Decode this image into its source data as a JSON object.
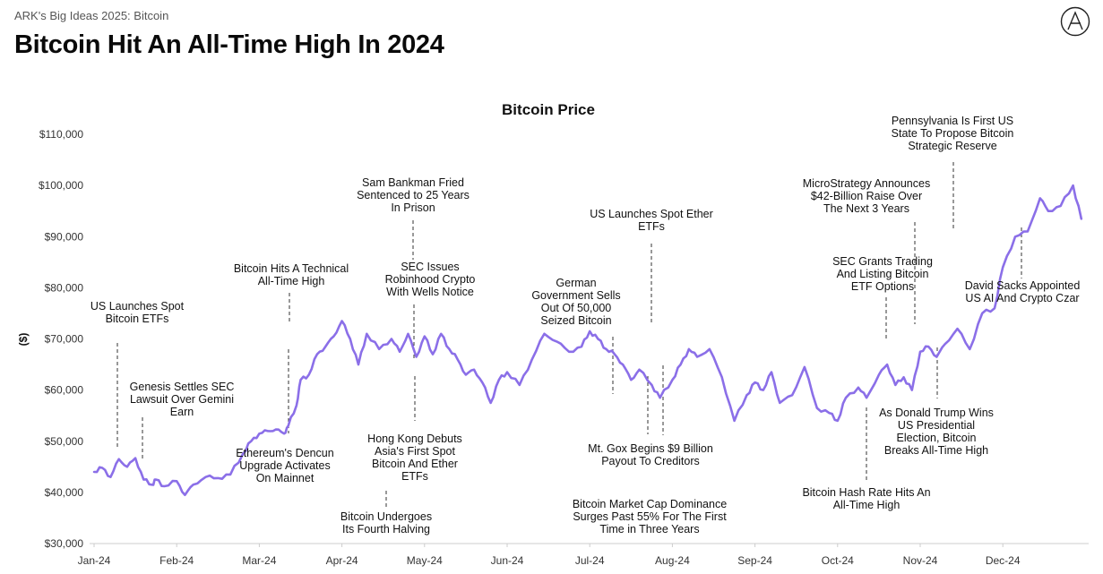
{
  "header": {
    "subtitle": "ARK's Big Ideas 2025: Bitcoin",
    "title": "Bitcoin Hit An All-Time High In 2024",
    "logo_icon": "ark-logo-icon"
  },
  "chart_data": {
    "type": "line",
    "title": "Bitcoin Price",
    "ylabel": "($)",
    "xlabel": "",
    "ylim": [
      30000,
      110000
    ],
    "y_ticks": [
      "$30,000",
      "$40,000",
      "$50,000",
      "$60,000",
      "$70,000",
      "$80,000",
      "$90,000",
      "$100,000",
      "$110,000"
    ],
    "x_ticks": [
      "Jan-24",
      "Feb-24",
      "Mar-24",
      "Apr-24",
      "May-24",
      "Jun-24",
      "Jul-24",
      "Aug-24",
      "Sep-24",
      "Oct-24",
      "Nov-24",
      "Dec-24"
    ],
    "line_color": "#8b6fe8",
    "series": [
      {
        "name": "Bitcoin Price",
        "x": [
          0,
          0.1,
          0.2,
          0.3,
          0.4,
          0.5,
          0.6,
          0.7,
          0.75,
          0.85,
          1,
          1.1,
          1.2,
          1.35,
          1.5,
          1.65,
          1.8,
          1.9,
          2,
          2.1,
          2.2,
          2.3,
          2.35,
          2.45,
          2.5,
          2.6,
          2.7,
          2.8,
          2.9,
          3,
          3.1,
          3.2,
          3.3,
          3.45,
          3.6,
          3.7,
          3.8,
          3.9,
          4,
          4.1,
          4.2,
          4.3,
          4.4,
          4.5,
          4.6,
          4.7,
          4.8,
          4.9,
          5,
          5.15,
          5.3,
          5.45,
          5.6,
          5.75,
          5.9,
          6,
          6.1,
          6.2,
          6.3,
          6.4,
          6.5,
          6.6,
          6.75,
          6.85,
          7,
          7.1,
          7.2,
          7.3,
          7.45,
          7.6,
          7.75,
          7.9,
          8,
          8.1,
          8.2,
          8.3,
          8.45,
          8.6,
          8.75,
          8.9,
          9,
          9.1,
          9.25,
          9.35,
          9.5,
          9.6,
          9.7,
          9.8,
          9.9,
          10,
          10.1,
          10.2,
          10.3,
          10.45,
          10.6,
          10.75,
          10.9,
          11,
          11.15,
          11.3,
          11.45,
          11.55,
          11.7,
          11.85,
          11.95
        ],
        "values": [
          44000,
          44800,
          43000,
          46500,
          45000,
          46700,
          42500,
          41500,
          42500,
          41200,
          42200,
          39500,
          41500,
          43000,
          42800,
          43500,
          47500,
          50000,
          51500,
          52000,
          52300,
          51500,
          53000,
          57000,
          62000,
          63000,
          67000,
          68500,
          70500,
          73500,
          70000,
          65000,
          71000,
          68000,
          70000,
          67500,
          71000,
          66500,
          70500,
          67000,
          71000,
          68000,
          66000,
          63000,
          64000,
          61500,
          57500,
          62000,
          63500,
          61000,
          66000,
          71000,
          69500,
          67500,
          68500,
          71500,
          70000,
          68000,
          67000,
          65000,
          62000,
          64000,
          61000,
          58500,
          62000,
          65000,
          68000,
          66500,
          68000,
          62500,
          54000,
          59000,
          61500,
          60000,
          63500,
          57500,
          59000,
          64500,
          56500,
          55500,
          54000,
          58500,
          60500,
          58500,
          63000,
          65000,
          61000,
          62500,
          60000,
          67500,
          68500,
          66500,
          69000,
          72000,
          68000,
          75000,
          76000,
          84000,
          90000,
          91000,
          97500,
          95000,
          96000,
          100000,
          93500
        ]
      }
    ],
    "annotations": [
      {
        "id": "us-launches-spot-bitcoin-etfs",
        "lines": [
          "US Launches Spot",
          "Bitcoin ETFs"
        ]
      },
      {
        "id": "genesis-settles-sec",
        "lines": [
          "Genesis Settles SEC",
          "Lawsuit Over Gemini",
          "Earn"
        ]
      },
      {
        "id": "bitcoin-technical-ath",
        "lines": [
          "Bitcoin Hits A Technical",
          "All-Time High"
        ]
      },
      {
        "id": "ethereum-dencun",
        "lines": [
          "Ethereum's Dencun",
          "Upgrade Activates",
          "On Mainnet"
        ]
      },
      {
        "id": "sbf-sentenced",
        "lines": [
          "Sam Bankman Fried",
          "Sentenced to 25 Years",
          "In Prison"
        ]
      },
      {
        "id": "sec-robinhood",
        "lines": [
          "SEC Issues",
          "Robinhood Crypto",
          "With Wells Notice"
        ]
      },
      {
        "id": "hong-kong-etfs",
        "lines": [
          "Hong Kong Debuts",
          "Asia's First Spot",
          "Bitcoin And Ether",
          "ETFs"
        ]
      },
      {
        "id": "bitcoin-halving",
        "lines": [
          "Bitcoin Undergoes",
          "Its Fourth Halving"
        ]
      },
      {
        "id": "german-government",
        "lines": [
          "German",
          "Government Sells",
          "Out Of 50,000",
          "Seized Bitcoin"
        ]
      },
      {
        "id": "us-spot-ether-etfs",
        "lines": [
          "US Launches Spot Ether",
          "ETFs"
        ]
      },
      {
        "id": "mt-gox-payout",
        "lines": [
          "Mt. Gox Begins $9 Billion",
          "Payout To Creditors"
        ]
      },
      {
        "id": "market-cap-dominance",
        "lines": [
          "Bitcoin Market Cap Dominance",
          "Surges Past 55% For The First",
          "Time in Three Years"
        ]
      },
      {
        "id": "sec-etf-options",
        "lines": [
          "SEC Grants Trading",
          "And Listing Bitcoin",
          "ETF Options"
        ]
      },
      {
        "id": "microstrategy-raise",
        "lines": [
          "MicroStrategy Announces",
          "$42-Billion Raise Over",
          "The Next 3 Years"
        ]
      },
      {
        "id": "pennsylvania-reserve",
        "lines": [
          "Pennsylvania Is First US",
          "State To Propose Bitcoin",
          "Strategic Reserve"
        ]
      },
      {
        "id": "trump-wins",
        "lines": [
          "As Donald Trump Wins",
          "US Presidential",
          "Election, Bitcoin",
          "Breaks All-Time High"
        ]
      },
      {
        "id": "hash-rate-ath",
        "lines": [
          "Bitcoin Hash Rate Hits An",
          "All-Time High"
        ]
      },
      {
        "id": "david-sacks",
        "lines": [
          "David Sacks Appointed",
          "US AI And Crypto Czar"
        ]
      }
    ]
  }
}
